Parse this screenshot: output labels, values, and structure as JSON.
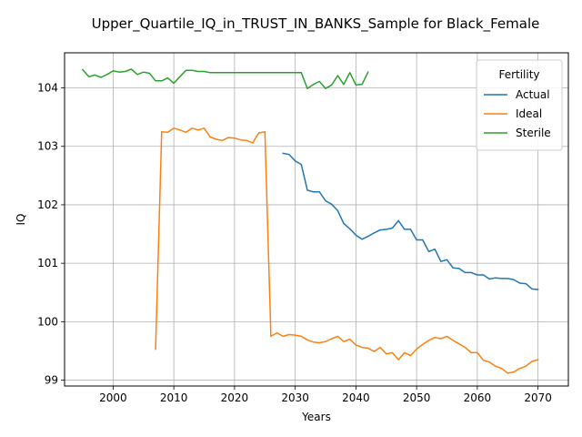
{
  "chart_data": {
    "type": "line",
    "title": "Upper_Quartile_IQ_in_TRUST_IN_BANKS_Sample for Black_Female",
    "xlabel": "Years",
    "ylabel": "IQ",
    "xlim": [
      1992,
      2075
    ],
    "ylim": [
      98.9,
      104.6
    ],
    "xticks": [
      2000,
      2010,
      2020,
      2030,
      2040,
      2050,
      2060,
      2070
    ],
    "yticks": [
      99,
      100,
      101,
      102,
      103,
      104
    ],
    "grid": true,
    "legend": {
      "title": "Fertility",
      "placement": "top-right"
    },
    "series": [
      {
        "name": "Actual",
        "color": "#1f77b4",
        "x": [
          2028,
          2029,
          2030,
          2031,
          2032,
          2033,
          2034,
          2035,
          2036,
          2037,
          2038,
          2039,
          2040,
          2041,
          2042,
          2043,
          2044,
          2045,
          2046,
          2047,
          2048,
          2049,
          2050,
          2051,
          2052,
          2053,
          2054,
          2055,
          2056,
          2057,
          2058,
          2059,
          2060,
          2061,
          2062,
          2063,
          2064,
          2065,
          2066,
          2067,
          2068,
          2069,
          2070
        ],
        "y": [
          102.88,
          102.86,
          102.75,
          102.69,
          102.25,
          102.22,
          102.22,
          102.07,
          102.01,
          101.9,
          101.68,
          101.59,
          101.48,
          101.41,
          101.46,
          101.52,
          101.57,
          101.58,
          101.6,
          101.73,
          101.58,
          101.58,
          101.4,
          101.4,
          101.2,
          101.24,
          101.03,
          101.06,
          100.92,
          100.91,
          100.84,
          100.84,
          100.8,
          100.8,
          100.73,
          100.75,
          100.74,
          100.74,
          100.72,
          100.66,
          100.65,
          100.56,
          100.55
        ]
      },
      {
        "name": "Ideal",
        "color": "#ff7f0e",
        "x": [
          2007,
          2008,
          2009,
          2010,
          2011,
          2012,
          2013,
          2014,
          2015,
          2016,
          2017,
          2018,
          2019,
          2020,
          2021,
          2022,
          2023,
          2024,
          2025,
          2026,
          2027,
          2028,
          2029,
          2030,
          2031,
          2032,
          2033,
          2034,
          2035,
          2036,
          2037,
          2038,
          2039,
          2040,
          2041,
          2042,
          2043,
          2044,
          2045,
          2046,
          2047,
          2048,
          2049,
          2050,
          2051,
          2052,
          2053,
          2054,
          2055,
          2056,
          2057,
          2058,
          2059,
          2060,
          2061,
          2062,
          2063,
          2064,
          2065,
          2066,
          2067,
          2068,
          2069,
          2070
        ],
        "y": [
          99.53,
          103.25,
          103.24,
          103.31,
          103.28,
          103.24,
          103.31,
          103.28,
          103.31,
          103.16,
          103.12,
          103.1,
          103.15,
          103.14,
          103.11,
          103.1,
          103.06,
          103.23,
          103.25,
          99.75,
          99.81,
          99.75,
          99.78,
          99.77,
          99.75,
          99.69,
          99.65,
          99.64,
          99.66,
          99.71,
          99.75,
          99.66,
          99.7,
          99.6,
          99.56,
          99.55,
          99.49,
          99.56,
          99.45,
          99.47,
          99.35,
          99.47,
          99.42,
          99.53,
          99.61,
          99.68,
          99.73,
          99.71,
          99.75,
          99.68,
          99.62,
          99.56,
          99.47,
          99.47,
          99.34,
          99.31,
          99.24,
          99.2,
          99.12,
          99.14,
          99.2,
          99.24,
          99.32,
          99.35
        ]
      },
      {
        "name": "Sterile",
        "color": "#2ca02c",
        "x": [
          1995,
          1996,
          1997,
          1998,
          1999,
          2000,
          2001,
          2002,
          2003,
          2004,
          2005,
          2006,
          2007,
          2008,
          2009,
          2010,
          2011,
          2012,
          2013,
          2014,
          2015,
          2016,
          2017,
          2018,
          2019,
          2020,
          2021,
          2022,
          2023,
          2024,
          2025,
          2026,
          2027,
          2028,
          2029,
          2030,
          2031,
          2032,
          2033,
          2034,
          2035,
          2036,
          2037,
          2038,
          2039,
          2040,
          2041,
          2042
        ],
        "y": [
          104.31,
          104.19,
          104.22,
          104.18,
          104.23,
          104.29,
          104.27,
          104.28,
          104.32,
          104.23,
          104.27,
          104.25,
          104.12,
          104.12,
          104.17,
          104.08,
          104.19,
          104.3,
          104.3,
          104.28,
          104.28,
          104.26,
          104.26,
          104.26,
          104.26,
          104.26,
          104.26,
          104.26,
          104.26,
          104.26,
          104.26,
          104.26,
          104.26,
          104.26,
          104.26,
          104.26,
          104.26,
          103.99,
          104.06,
          104.11,
          103.99,
          104.05,
          104.21,
          104.06,
          104.26,
          104.05,
          104.06,
          104.27
        ]
      }
    ]
  }
}
